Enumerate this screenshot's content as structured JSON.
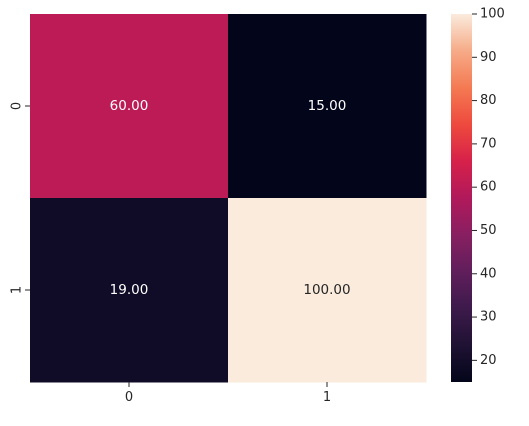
{
  "chart_data": {
    "type": "heatmap",
    "title": "",
    "xlabel": "",
    "ylabel": "",
    "x_categories": [
      "0",
      "1"
    ],
    "y_categories": [
      "0",
      "1"
    ],
    "values": [
      [
        60.0,
        15.0
      ],
      [
        19.0,
        100.0
      ]
    ],
    "cell_labels": [
      [
        "60.00",
        "15.00"
      ],
      [
        "19.00",
        "100.00"
      ]
    ],
    "colormap": "rocket",
    "colorbar": {
      "range": [
        15,
        100
      ],
      "ticks": [
        "20",
        "30",
        "40",
        "50",
        "60",
        "70",
        "80",
        "90",
        "100"
      ],
      "tick_values": [
        20,
        30,
        40,
        50,
        60,
        70,
        80,
        90,
        100
      ]
    },
    "grid": false,
    "legend": "colorbar-right"
  }
}
